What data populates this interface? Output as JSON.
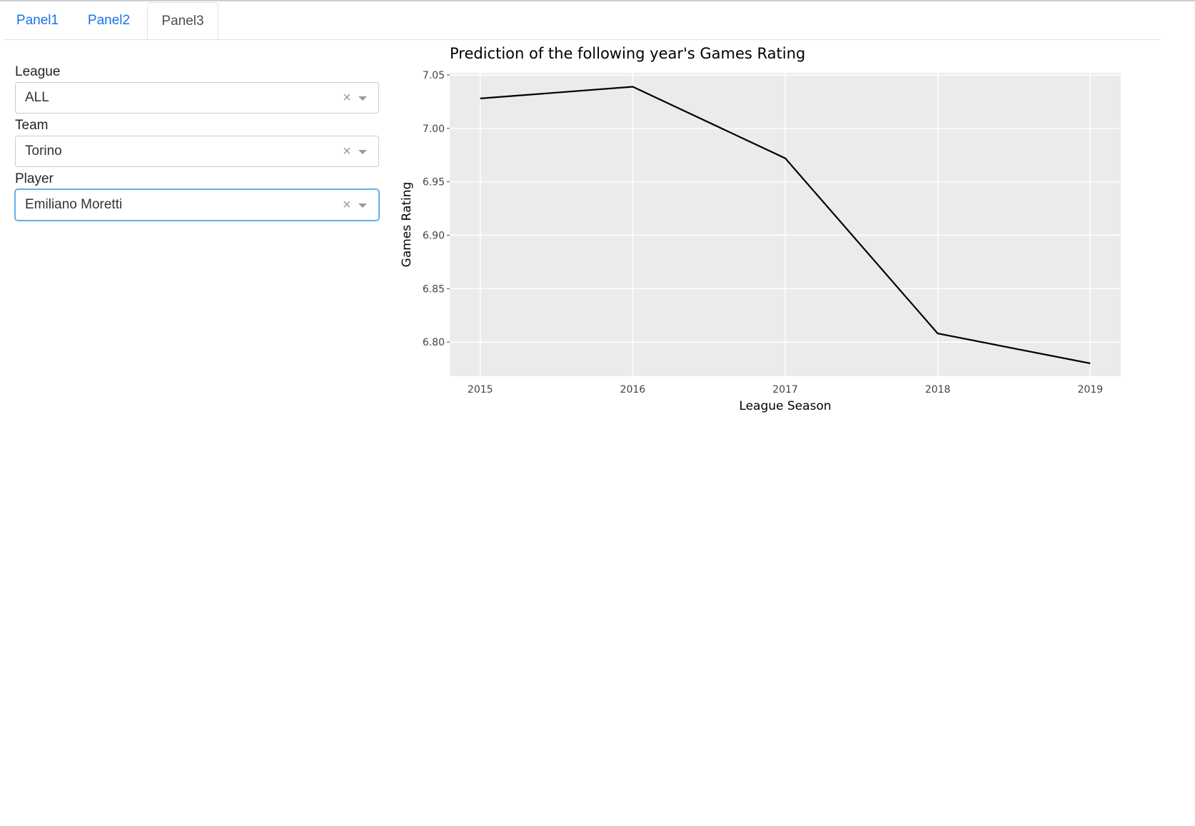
{
  "tabs": [
    {
      "label": "Panel1",
      "active": false
    },
    {
      "label": "Panel2",
      "active": false
    },
    {
      "label": "Panel3",
      "active": true
    }
  ],
  "filters": {
    "league": {
      "label": "League",
      "value": "ALL",
      "clear": "×"
    },
    "team": {
      "label": "Team",
      "value": "Torino",
      "clear": "×"
    },
    "player": {
      "label": "Player",
      "value": "Emiliano Moretti",
      "clear": "×"
    }
  },
  "chart_data": {
    "type": "line",
    "title": "Prediction of the following year's Games Rating",
    "xlabel": "League Season",
    "ylabel": "Games Rating",
    "x": [
      2015,
      2016,
      2017,
      2018,
      2019
    ],
    "x_tick_labels": [
      "2015",
      "2016",
      "2017",
      "2018",
      "2019"
    ],
    "series": [
      {
        "values": [
          7.028,
          7.039,
          6.972,
          6.808,
          6.78
        ],
        "color": "#000000"
      }
    ],
    "y_ticks": [
      6.8,
      6.85,
      6.9,
      6.95,
      7.0,
      7.05
    ],
    "y_tick_labels": [
      "6.80",
      "6.85",
      "6.90",
      "6.95",
      "7.00",
      "7.05"
    ],
    "xlim": [
      2014.8,
      2019.2
    ],
    "ylim": [
      6.768,
      7.052
    ],
    "grid": true,
    "panel_color": "#ebebeb",
    "grid_color": "#ffffff"
  }
}
